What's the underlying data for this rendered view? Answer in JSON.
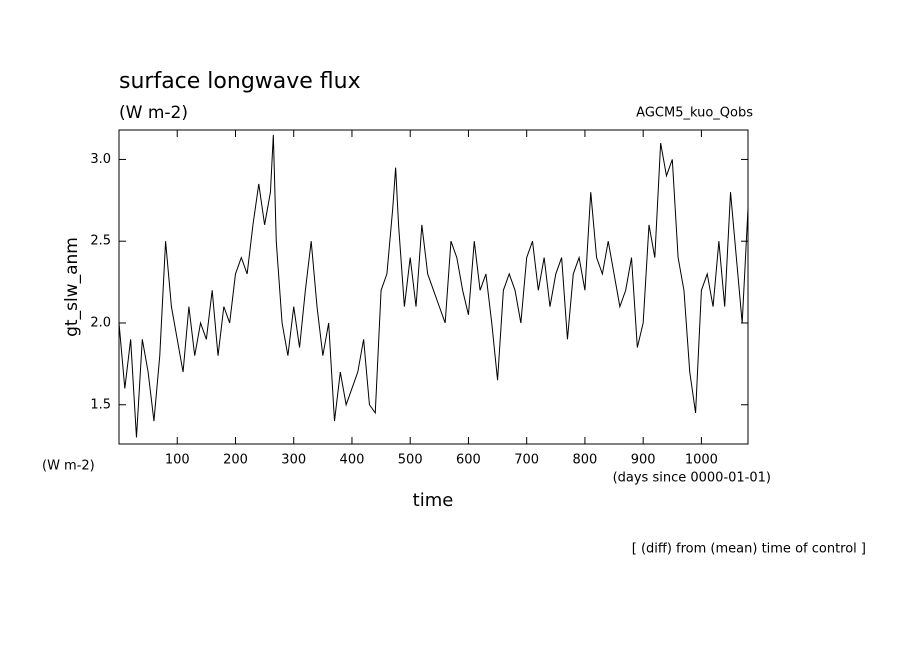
{
  "chart_data": {
    "type": "line",
    "title": "surface longwave flux",
    "subtitle": "(W m-2)",
    "annotation_right": "AGCM5_kuo_Qobs",
    "y_label": "gt_slw_anm",
    "y_unit": "(W m-2)",
    "x_label": "time",
    "x_unit": "(days since 0000-01-01)",
    "footer": "[ (diff) from (mean) time of control ]",
    "xlim": [
      0,
      1080
    ],
    "ylim": [
      1.26,
      3.18
    ],
    "xticks": [
      100,
      200,
      300,
      400,
      500,
      600,
      700,
      800,
      900,
      1000
    ],
    "yticks": [
      1.5,
      {
        "value": 2,
        "label": "2.0"
      },
      2.5,
      {
        "value": 3,
        "label": "3.0"
      }
    ],
    "color": "#000000",
    "x": [
      0,
      10,
      20,
      30,
      40,
      50,
      60,
      70,
      80,
      90,
      100,
      110,
      120,
      130,
      140,
      150,
      160,
      170,
      180,
      190,
      200,
      210,
      220,
      230,
      240,
      250,
      260,
      265,
      270,
      280,
      290,
      300,
      310,
      320,
      330,
      340,
      350,
      360,
      370,
      380,
      390,
      400,
      410,
      420,
      430,
      440,
      450,
      460,
      470,
      475,
      480,
      490,
      500,
      510,
      520,
      530,
      540,
      550,
      560,
      570,
      580,
      590,
      600,
      610,
      620,
      630,
      640,
      650,
      660,
      670,
      680,
      690,
      700,
      710,
      720,
      730,
      740,
      750,
      760,
      770,
      780,
      790,
      800,
      810,
      820,
      830,
      840,
      850,
      860,
      870,
      880,
      890,
      900,
      910,
      920,
      930,
      940,
      950,
      960,
      970,
      980,
      990,
      1000,
      1010,
      1020,
      1030,
      1040,
      1050,
      1060,
      1070,
      1080
    ],
    "values": [
      2.0,
      1.6,
      1.9,
      1.3,
      1.9,
      1.7,
      1.4,
      1.8,
      2.5,
      2.1,
      1.9,
      1.7,
      2.1,
      1.8,
      2.0,
      1.9,
      2.2,
      1.8,
      2.1,
      2.0,
      2.3,
      2.4,
      2.3,
      2.6,
      2.85,
      2.6,
      2.8,
      3.15,
      2.5,
      2.0,
      1.8,
      2.1,
      1.85,
      2.2,
      2.5,
      2.1,
      1.8,
      2.0,
      1.4,
      1.7,
      1.5,
      1.6,
      1.7,
      1.9,
      1.5,
      1.45,
      2.2,
      2.3,
      2.7,
      2.95,
      2.6,
      2.1,
      2.4,
      2.1,
      2.6,
      2.3,
      2.2,
      2.1,
      2.0,
      2.5,
      2.4,
      2.2,
      2.05,
      2.5,
      2.2,
      2.3,
      2.0,
      1.65,
      2.2,
      2.3,
      2.2,
      2.0,
      2.4,
      2.5,
      2.2,
      2.4,
      2.1,
      2.3,
      2.4,
      1.9,
      2.3,
      2.4,
      2.2,
      2.8,
      2.4,
      2.3,
      2.5,
      2.3,
      2.1,
      2.2,
      2.4,
      1.85,
      2.0,
      2.6,
      2.4,
      3.1,
      2.9,
      3.0,
      2.4,
      2.2,
      1.7,
      1.45,
      2.2,
      2.3,
      2.1,
      2.5,
      2.1,
      2.8,
      2.4,
      2.0,
      2.7
    ]
  }
}
